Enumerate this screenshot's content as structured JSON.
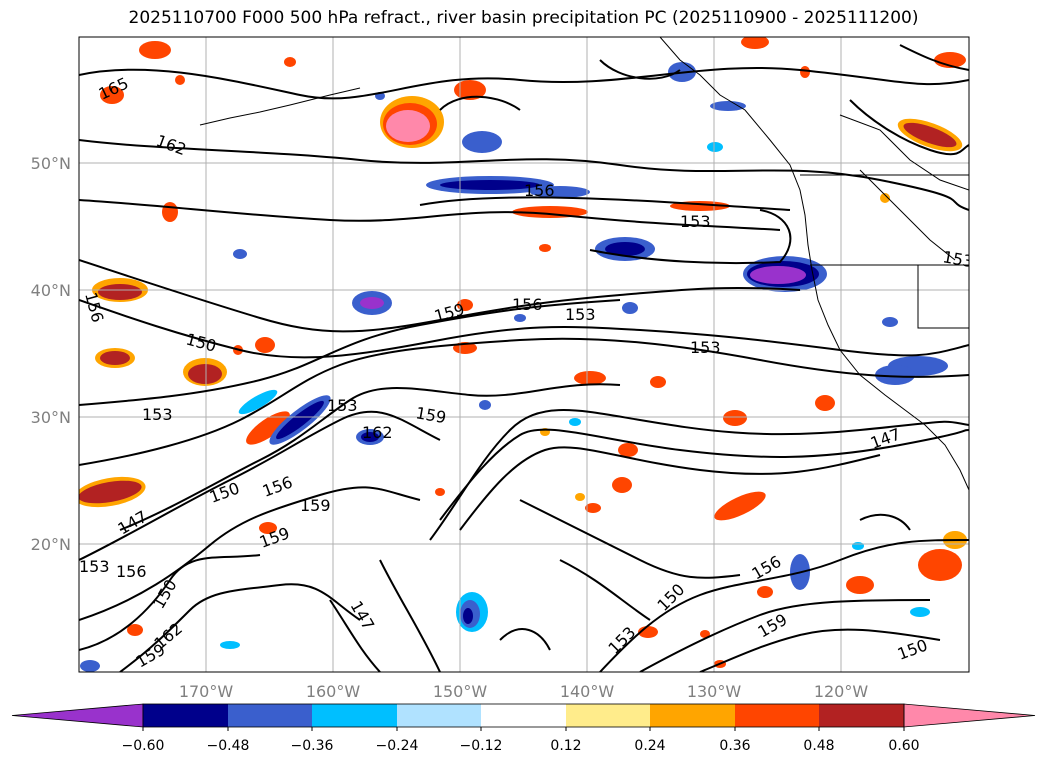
{
  "title": "2025110700 F000 500 hPa refract., river basin precipitation PC (2025110900 - 2025111200)",
  "lat_ticks": [
    "50°N",
    "40°N",
    "30°N",
    "20°N"
  ],
  "lon_ticks": [
    "170°W",
    "160°W",
    "150°W",
    "140°W",
    "130°W",
    "120°W"
  ],
  "contour_labels": [
    "165",
    "162",
    "156",
    "153",
    "159",
    "156",
    "153",
    "153",
    "150",
    "153",
    "153",
    "159",
    "162",
    "147",
    "150",
    "156",
    "159",
    "159",
    "147",
    "153",
    "156",
    "150",
    "162",
    "159",
    "147",
    "150",
    "153",
    "156",
    "159",
    "150",
    "156",
    "153"
  ],
  "colorbar": {
    "ticks": [
      "−0.60",
      "−0.48",
      "−0.36",
      "−0.24",
      "−0.12",
      "0.12",
      "0.24",
      "0.36",
      "0.48",
      "0.60"
    ],
    "colors": [
      "#9932cc",
      "#00008b",
      "#3a5fcd",
      "#00bfff",
      "#b0e2ff",
      "#ffffff",
      "#ffec8b",
      "#ffa500",
      "#ff4500",
      "#b22222",
      "#ff88aa",
      "#ff88aa"
    ]
  }
}
